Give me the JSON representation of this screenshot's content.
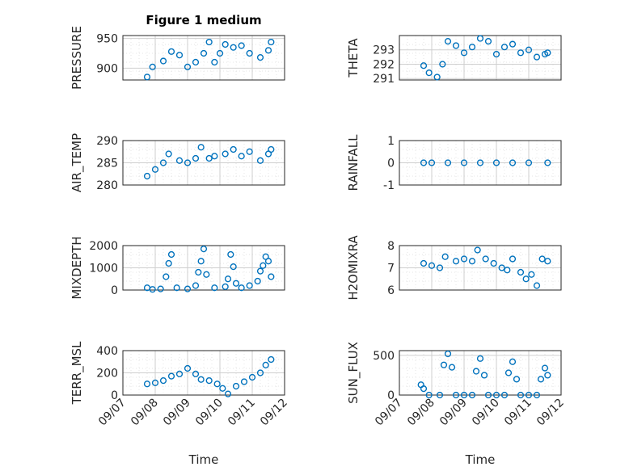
{
  "figure": {
    "title": "Figure 1 medium",
    "xlabel": "Time"
  },
  "colors": {
    "marker": "#0072BD",
    "axis": "#262626",
    "grid": "#cfcfcf",
    "minor_grid": "#e4e4e4"
  },
  "chart_data": [
    {
      "type": "scatter",
      "ylabel": "PRESSURE",
      "yticks": [
        "900",
        "950"
      ],
      "yticks_num": [
        900,
        950
      ],
      "ylim": [
        880,
        955
      ],
      "x": [
        "09/07 18:00",
        "09/07 22:00",
        "09/08 06:00",
        "09/08 12:00",
        "09/08 18:00",
        "09/09 00:00",
        "09/09 06:00",
        "09/09 12:00",
        "09/09 16:00",
        "09/09 20:00",
        "09/10 00:00",
        "09/10 04:00",
        "09/10 10:00",
        "09/10 16:00",
        "09/10 22:00",
        "09/11 06:00",
        "09/11 12:00",
        "09/11 14:00"
      ],
      "y": [
        885,
        902,
        912,
        928,
        922,
        902,
        910,
        925,
        944,
        910,
        925,
        940,
        935,
        938,
        925,
        918,
        930,
        944
      ]
    },
    {
      "type": "scatter",
      "ylabel": "THETA",
      "yticks": [
        "291",
        "292",
        "293"
      ],
      "yticks_num": [
        291,
        292,
        293
      ],
      "ylim": [
        290.9,
        294.0
      ],
      "x": [
        "09/07 18:00",
        "09/07 22:00",
        "09/08 04:00",
        "09/08 08:00",
        "09/08 12:00",
        "09/08 18:00",
        "09/09 00:00",
        "09/09 06:00",
        "09/09 12:00",
        "09/09 18:00",
        "09/10 00:00",
        "09/10 06:00",
        "09/10 12:00",
        "09/10 18:00",
        "09/11 00:00",
        "09/11 06:00",
        "09/11 12:00",
        "09/11 14:00"
      ],
      "y": [
        291.9,
        291.4,
        291.1,
        292.0,
        293.6,
        293.3,
        292.8,
        293.2,
        293.8,
        293.6,
        292.7,
        293.2,
        293.4,
        292.8,
        293.0,
        292.5,
        292.7,
        292.8
      ]
    },
    {
      "type": "scatter",
      "ylabel": "AIR_TEMP",
      "yticks": [
        "280",
        "285",
        "290"
      ],
      "yticks_num": [
        280,
        285,
        290
      ],
      "ylim": [
        280,
        290
      ],
      "x": [
        "09/07 18:00",
        "09/08 00:00",
        "09/08 06:00",
        "09/08 10:00",
        "09/08 18:00",
        "09/09 00:00",
        "09/09 06:00",
        "09/09 10:00",
        "09/09 16:00",
        "09/09 20:00",
        "09/10 04:00",
        "09/10 10:00",
        "09/10 16:00",
        "09/10 22:00",
        "09/11 06:00",
        "09/11 12:00",
        "09/11 14:00"
      ],
      "y": [
        282,
        283.5,
        285,
        287,
        285.5,
        285,
        286,
        288.5,
        286,
        286.5,
        287,
        288,
        286.5,
        287.5,
        285.5,
        287,
        288
      ]
    },
    {
      "type": "scatter",
      "ylabel": "RAINFALL",
      "yticks": [
        "-1",
        "0",
        "1"
      ],
      "yticks_num": [
        -1,
        0,
        1
      ],
      "ylim": [
        -1,
        1
      ],
      "x": [
        "09/07 18:00",
        "09/08 00:00",
        "09/08 12:00",
        "09/09 00:00",
        "09/09 12:00",
        "09/10 00:00",
        "09/10 12:00",
        "09/11 00:00",
        "09/11 14:00"
      ],
      "y": [
        0,
        0,
        0,
        0,
        0,
        0,
        0,
        0,
        0
      ]
    },
    {
      "type": "scatter",
      "ylabel": "MIXDEPTH",
      "yticks": [
        "0",
        "1000",
        "2000"
      ],
      "yticks_num": [
        0,
        1000,
        2000
      ],
      "ylim": [
        0,
        2000
      ],
      "x": [
        "09/07 18:00",
        "09/07 22:00",
        "09/08 04:00",
        "09/08 08:00",
        "09/08 10:00",
        "09/08 12:00",
        "09/08 16:00",
        "09/09 00:00",
        "09/09 06:00",
        "09/09 08:00",
        "09/09 10:00",
        "09/09 12:00",
        "09/09 14:00",
        "09/09 20:00",
        "09/10 04:00",
        "09/10 06:00",
        "09/10 08:00",
        "09/10 10:00",
        "09/10 12:00",
        "09/10 16:00",
        "09/10 22:00",
        "09/11 04:00",
        "09/11 06:00",
        "09/11 08:00",
        "09/11 10:00",
        "09/11 12:00",
        "09/11 14:00"
      ],
      "y": [
        100,
        30,
        50,
        600,
        1200,
        1600,
        100,
        50,
        200,
        800,
        1300,
        1850,
        700,
        100,
        150,
        500,
        1600,
        1050,
        300,
        100,
        200,
        400,
        850,
        1100,
        1500,
        1300,
        600
      ]
    },
    {
      "type": "scatter",
      "ylabel": "H2OMIXRA",
      "yticks": [
        "6",
        "7",
        "8"
      ],
      "yticks_num": [
        6,
        7,
        8
      ],
      "ylim": [
        6,
        8
      ],
      "x": [
        "09/07 18:00",
        "09/08 00:00",
        "09/08 06:00",
        "09/08 10:00",
        "09/08 18:00",
        "09/09 00:00",
        "09/09 06:00",
        "09/09 10:00",
        "09/09 16:00",
        "09/09 22:00",
        "09/10 04:00",
        "09/10 08:00",
        "09/10 12:00",
        "09/10 18:00",
        "09/10 22:00",
        "09/11 02:00",
        "09/11 06:00",
        "09/11 10:00",
        "09/11 14:00"
      ],
      "y": [
        7.2,
        7.1,
        7.0,
        7.5,
        7.3,
        7.4,
        7.3,
        7.8,
        7.4,
        7.2,
        7.0,
        6.9,
        7.4,
        6.8,
        6.5,
        6.7,
        6.2,
        7.4,
        7.3
      ]
    },
    {
      "type": "scatter",
      "ylabel": "TERR_MSL",
      "yticks": [
        "0",
        "200",
        "400"
      ],
      "yticks_num": [
        0,
        200,
        400
      ],
      "ylim": [
        0,
        400
      ],
      "x": [
        "09/07 18:00",
        "09/08 00:00",
        "09/08 06:00",
        "09/08 12:00",
        "09/08 18:00",
        "09/09 00:00",
        "09/09 06:00",
        "09/09 10:00",
        "09/09 16:00",
        "09/09 22:00",
        "09/10 02:00",
        "09/10 06:00",
        "09/10 12:00",
        "09/10 18:00",
        "09/11 00:00",
        "09/11 06:00",
        "09/11 10:00",
        "09/11 14:00"
      ],
      "y": [
        100,
        110,
        130,
        170,
        190,
        240,
        190,
        140,
        130,
        100,
        60,
        10,
        80,
        120,
        160,
        200,
        270,
        320
      ]
    },
    {
      "type": "scatter",
      "ylabel": "SUN_FLUX",
      "yticks": [
        "0",
        "500"
      ],
      "yticks_num": [
        0,
        500
      ],
      "ylim": [
        0,
        560
      ],
      "x": [
        "09/07 16:00",
        "09/07 18:00",
        "09/07 22:00",
        "09/08 06:00",
        "09/08 09:00",
        "09/08 12:00",
        "09/08 15:00",
        "09/08 18:00",
        "09/09 00:00",
        "09/09 06:00",
        "09/09 09:00",
        "09/09 12:00",
        "09/09 15:00",
        "09/09 18:00",
        "09/10 00:00",
        "09/10 06:00",
        "09/10 09:00",
        "09/10 12:00",
        "09/10 15:00",
        "09/10 18:00",
        "09/11 00:00",
        "09/11 06:00",
        "09/11 09:00",
        "09/11 12:00",
        "09/11 14:00"
      ],
      "y": [
        130,
        80,
        0,
        0,
        380,
        520,
        350,
        0,
        0,
        0,
        300,
        460,
        250,
        0,
        0,
        0,
        280,
        420,
        200,
        0,
        0,
        0,
        200,
        340,
        250
      ]
    }
  ],
  "xaxis": {
    "ticks": [
      "09/07",
      "09/08",
      "09/09",
      "09/10",
      "09/11",
      "09/12"
    ]
  }
}
